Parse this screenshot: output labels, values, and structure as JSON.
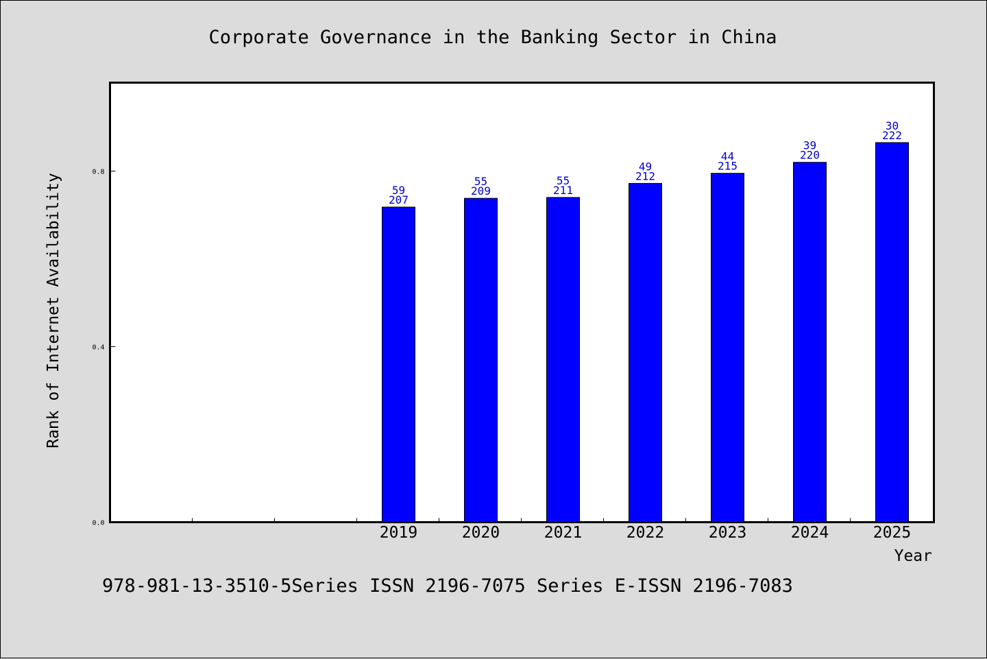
{
  "chart_data": {
    "type": "bar",
    "title": "Corporate Governance in the Banking Sector in China",
    "xlabel": "Year",
    "ylabel": "Rank of Internet Availability",
    "categories": [
      "",
      "",
      "",
      "2019",
      "2020",
      "2021",
      "2022",
      "2023",
      "2024",
      "2025"
    ],
    "values": [
      null,
      null,
      null,
      0.718,
      0.738,
      0.74,
      0.772,
      0.795,
      0.82,
      0.865
    ],
    "labels_top": [
      "",
      "",
      "",
      "59",
      "55",
      "55",
      "49",
      "44",
      "39",
      "30"
    ],
    "labels_bottom": [
      "",
      "",
      "",
      "207",
      "209",
      "211",
      "212",
      "215",
      "220",
      "222"
    ],
    "yticks": [
      "0.0",
      "0.4",
      "0.8"
    ],
    "ytick_values": [
      0.0,
      0.4,
      0.8
    ],
    "ylim": [
      0,
      1.0
    ],
    "grid": false,
    "bar_color": "#0000ff",
    "label_color": "#0000cc"
  },
  "footer": {
    "text": "978-981-13-3510-5Series ISSN 2196-7075 Series E-ISSN 2196-7083"
  }
}
